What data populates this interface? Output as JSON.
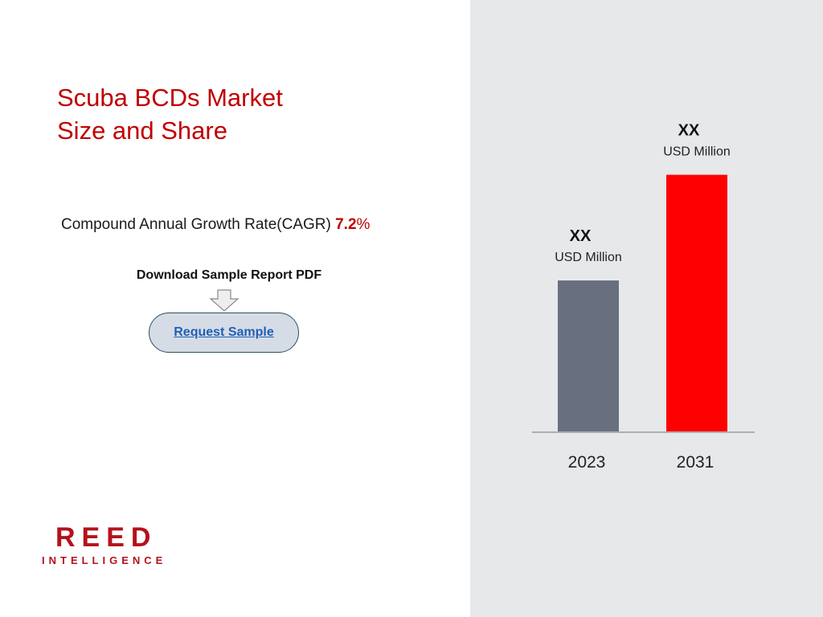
{
  "header": {
    "title_line1": "Scuba BCDs Market",
    "title_line2": "Size and Share"
  },
  "cagr": {
    "label": "Compound Annual Growth Rate(CAGR) ",
    "value": "7.2",
    "unit": "%"
  },
  "download": {
    "label": "Download Sample Report PDF",
    "arrow_icon": "down-arrow-icon",
    "button_label": "Request Sample"
  },
  "logo": {
    "main": "REED",
    "sub": "INTELLIGENCE"
  },
  "colors": {
    "title": "#c00000",
    "bar_2023": "#687080",
    "bar_2031": "#ff0000",
    "panel_bg": "#e7e8ea"
  },
  "chart_data": {
    "type": "bar",
    "categories": [
      "2023",
      "2031"
    ],
    "values": [
      1.0,
      1.7
    ],
    "value_labels": [
      "XX",
      "XX"
    ],
    "unit_labels": [
      "USD Million",
      "USD Million"
    ],
    "bar_colors": [
      "#687080",
      "#ff0000"
    ],
    "ylim": [
      0,
      1.9
    ],
    "grid": false,
    "legend": "none"
  }
}
